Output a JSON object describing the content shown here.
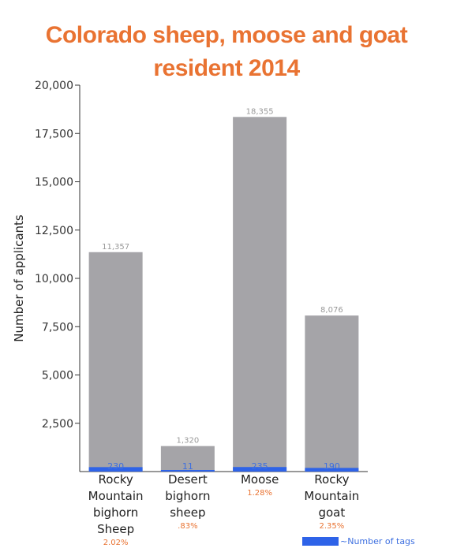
{
  "chart_data": {
    "type": "bar",
    "title_line1": "Colorado sheep, moose and goat",
    "title_line2": "resident 2014",
    "ylabel": "Number of applicants",
    "ylim": [
      0,
      20000
    ],
    "yticks": [
      2500,
      5000,
      7500,
      10000,
      12500,
      15000,
      17500,
      20000
    ],
    "ytick_labels": [
      "2,500",
      "5,000",
      "7,500",
      "10,000",
      "12,500",
      "15,000",
      "17,500",
      "20,000"
    ],
    "categories": [
      [
        "Rocky",
        "Mountain",
        "bighorn",
        "Sheep"
      ],
      [
        "Desert",
        "bighorn",
        "sheep"
      ],
      [
        "Moose"
      ],
      [
        "Rocky",
        "Mountain",
        "goat"
      ]
    ],
    "series": [
      {
        "values": [
          11357,
          1320,
          18355,
          8076
        ],
        "value_labels": [
          "11,357",
          "1,320",
          "18,355",
          "8,076"
        ],
        "color": "#a5a4a8"
      },
      {
        "name": "Number of tags",
        "values": [
          230,
          11,
          235,
          190
        ],
        "value_labels": [
          "230",
          "11",
          "235",
          "190"
        ],
        "color": "#2e63e8"
      }
    ],
    "percent_labels": [
      "2.02%",
      ".83%",
      "1.28%",
      "2.35%"
    ],
    "legend": {
      "label": "Number of tags",
      "position": "bottom-right"
    },
    "grid": false
  }
}
